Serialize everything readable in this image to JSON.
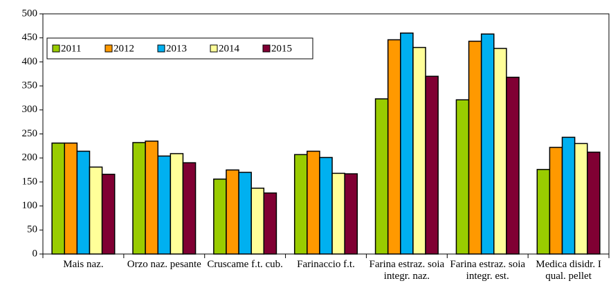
{
  "chart_data": {
    "type": "bar",
    "categories": [
      "Mais naz.",
      "Orzo naz. pesante",
      "Cruscame f.t. cub.",
      "Farinaccio f.t.",
      "Farina estraz. soia integr. naz.",
      "Farina estraz. soia integr. est.",
      "Medica disidr. I qual. pellet"
    ],
    "series": [
      {
        "name": "2011",
        "color": "#99cc00",
        "values": [
          231,
          232,
          156,
          207,
          323,
          321,
          176
        ]
      },
      {
        "name": "2012",
        "color": "#ff9900",
        "values": [
          231,
          235,
          175,
          214,
          446,
          443,
          222
        ]
      },
      {
        "name": "2013",
        "color": "#00b0f0",
        "values": [
          214,
          204,
          170,
          201,
          460,
          458,
          243
        ]
      },
      {
        "name": "2014",
        "color": "#ffff99",
        "values": [
          181,
          209,
          137,
          168,
          430,
          428,
          230
        ]
      },
      {
        "name": "2015",
        "color": "#800033",
        "values": [
          166,
          190,
          127,
          167,
          370,
          368,
          212
        ]
      }
    ],
    "ylim": [
      0,
      500
    ],
    "yticks": [
      0,
      50,
      100,
      150,
      200,
      250,
      300,
      350,
      400,
      450,
      500
    ],
    "grid": false,
    "legend": "top-left"
  }
}
